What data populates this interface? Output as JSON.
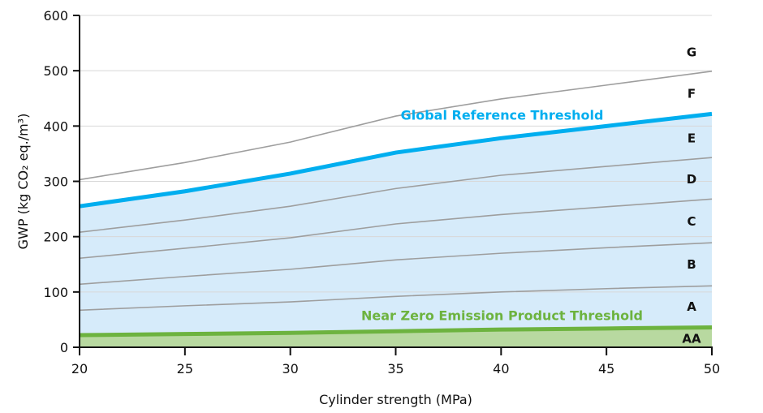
{
  "chart_data": {
    "type": "line",
    "xlabel": "Cylinder strength (MPa)",
    "ylabel": "GWP (kg CO₂ eq./m³)",
    "xlim": [
      20,
      50
    ],
    "ylim": [
      0,
      600
    ],
    "x_ticks": [
      20,
      25,
      30,
      35,
      40,
      45,
      50
    ],
    "y_ticks": [
      0,
      100,
      200,
      300,
      400,
      500,
      600
    ],
    "grid": "horizontal",
    "x": [
      20,
      25,
      30,
      35,
      40,
      45,
      50
    ],
    "series": [
      {
        "name": "Global Reference Threshold",
        "role": "threshold",
        "color": "#00aeef",
        "values": [
          255,
          282,
          314,
          352,
          378,
          400,
          422
        ]
      },
      {
        "name": "Near Zero Emission Product Threshold",
        "role": "threshold",
        "color": "#6db33f",
        "values": [
          22,
          24,
          26,
          29,
          32,
          34,
          36
        ]
      },
      {
        "role": "boundary-F-G",
        "color": "#9e9e9e",
        "values": [
          303,
          334,
          371,
          418,
          449,
          474,
          499
        ]
      },
      {
        "role": "boundary-D-E",
        "color": "#9e9e9e",
        "values": [
          208,
          230,
          255,
          287,
          311,
          327,
          343
        ]
      },
      {
        "role": "boundary-C-D",
        "color": "#9e9e9e",
        "values": [
          161,
          179,
          198,
          223,
          240,
          254,
          268
        ]
      },
      {
        "role": "boundary-B-C",
        "color": "#9e9e9e",
        "values": [
          114,
          128,
          141,
          158,
          170,
          180,
          189
        ]
      },
      {
        "role": "boundary-A-B",
        "color": "#9e9e9e",
        "values": [
          67,
          75,
          82,
          92,
          100,
          106,
          111
        ]
      }
    ],
    "band_labels": [
      {
        "label": "G",
        "y": 535
      },
      {
        "label": "F",
        "y": 460
      },
      {
        "label": "E",
        "y": 379
      },
      {
        "label": "D",
        "y": 305
      },
      {
        "label": "C",
        "y": 229
      },
      {
        "label": "B",
        "y": 151
      },
      {
        "label": "A",
        "y": 75
      },
      {
        "label": "AA",
        "y": 17
      }
    ],
    "annotations": [
      {
        "text": "Global Reference Threshold",
        "x": 35,
        "y": 420,
        "color": "#00aeef"
      },
      {
        "text": "Near Zero Emission Product Threshold",
        "x": 35,
        "y": 58,
        "color": "#6db33f"
      }
    ],
    "fill_colors": {
      "between_thresholds": "#d6ebfa",
      "below_near_zero": "#b8d9a0"
    }
  }
}
